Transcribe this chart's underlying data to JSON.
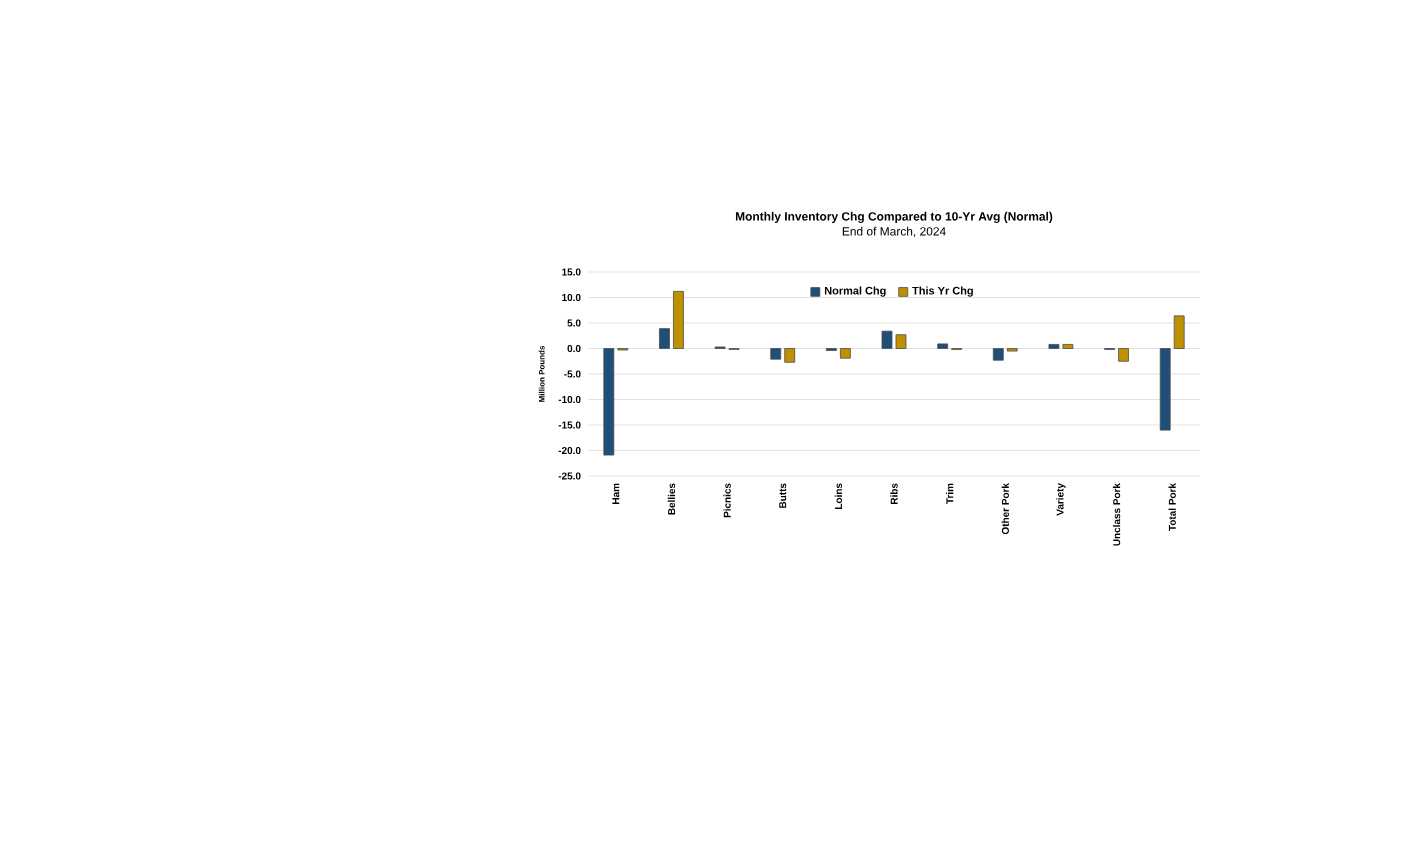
{
  "chart_data": {
    "type": "bar",
    "title": "Monthly Inventory Chg Compared to 10-Yr Avg (Normal)",
    "subtitle": "End of March, 2024",
    "ylabel": "Million Pounds",
    "categories": [
      "Ham",
      "Bellies",
      "Picnics",
      "Butts",
      "Loins",
      "Ribs",
      "Trim",
      "Other Pork",
      "Variety",
      "Unclass Pork",
      "Total Pork"
    ],
    "series": [
      {
        "name": "Normal Chg",
        "color": "#1f4e79",
        "values": [
          -20.9,
          3.9,
          0.3,
          -2.1,
          -0.4,
          3.4,
          0.9,
          -2.3,
          0.8,
          -0.2,
          -16.0
        ]
      },
      {
        "name": "This Yr Chg",
        "color": "#bf9000",
        "values": [
          -0.3,
          11.2,
          -0.2,
          -2.7,
          -1.9,
          2.7,
          -0.2,
          -0.5,
          0.8,
          -2.5,
          6.4
        ]
      }
    ],
    "ylim": [
      -25,
      15
    ],
    "yticks": [
      {
        "value": -25,
        "label": "-25.0"
      },
      {
        "value": -20,
        "label": "-20.0"
      },
      {
        "value": -15,
        "label": "-15.0"
      },
      {
        "value": -10,
        "label": "-10.0"
      },
      {
        "value": -5,
        "label": "-5.0"
      },
      {
        "value": 0,
        "label": "0.0"
      },
      {
        "value": 5,
        "label": "5.0"
      },
      {
        "value": 10,
        "label": "10.0"
      },
      {
        "value": 15,
        "label": "15.0"
      }
    ],
    "grid": "y",
    "legend": "top"
  }
}
